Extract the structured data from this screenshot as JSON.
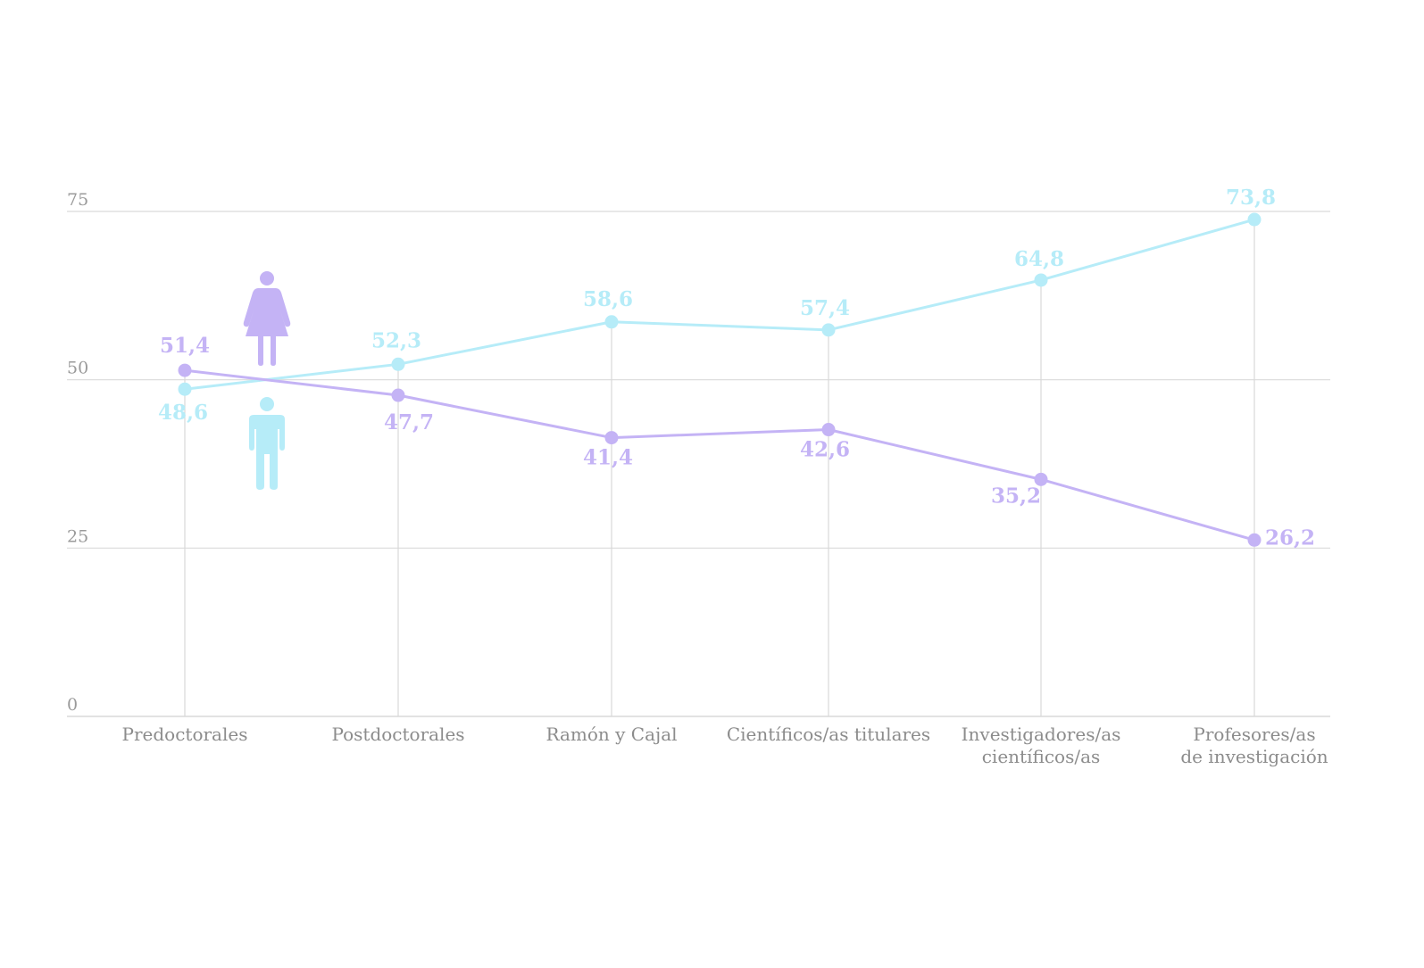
{
  "colors": {
    "women": "#c4b3f5",
    "men": "#b6ecf8",
    "grid": "#d9d9d9",
    "axis_text": "#999999"
  },
  "icons": {
    "women": "woman-icon",
    "men": "man-icon"
  },
  "chart_data": {
    "type": "line",
    "title": "",
    "xlabel": "",
    "ylabel": "",
    "ylim": [
      0,
      75
    ],
    "yticks": [
      0,
      25,
      50,
      75
    ],
    "ytick_labels": [
      "0",
      "25",
      "50",
      "75"
    ],
    "grid": true,
    "categories": [
      [
        "Predoctorales"
      ],
      [
        "Postdoctorales"
      ],
      [
        "Ramón y Cajal"
      ],
      [
        "Científicos/as titulares"
      ],
      [
        "Investigadores/as",
        "científicos/as"
      ],
      [
        "Profesores/as",
        "de investigación"
      ]
    ],
    "series": [
      {
        "key": "women",
        "values": [
          51.4,
          47.7,
          41.4,
          42.6,
          35.2,
          26.2
        ],
        "labels": [
          "51,4",
          "47,7",
          "41,4",
          "42,6",
          "35,2",
          "26,2"
        ]
      },
      {
        "key": "men",
        "values": [
          48.6,
          52.3,
          58.6,
          57.4,
          64.8,
          73.8
        ],
        "labels": [
          "48,6",
          "52,3",
          "58,6",
          "57,4",
          "64,8",
          "73,8"
        ]
      }
    ]
  }
}
